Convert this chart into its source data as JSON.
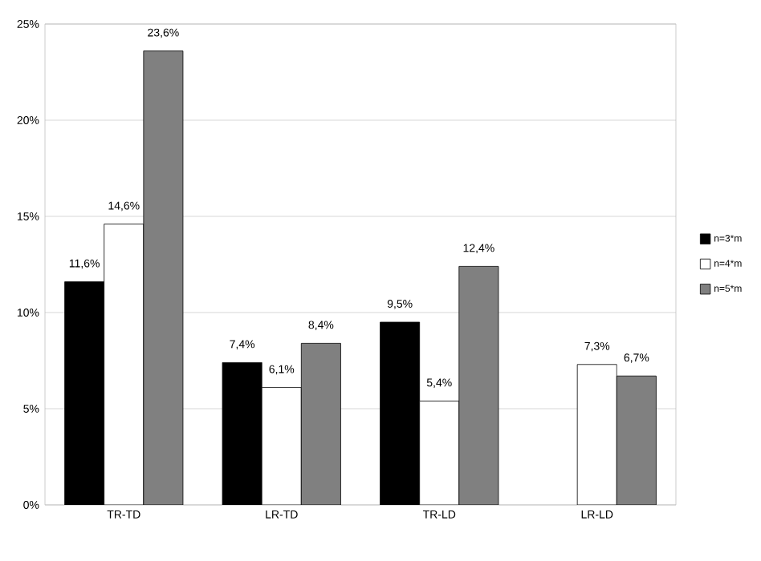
{
  "chart_data": {
    "type": "bar",
    "categories": [
      "TR-TD",
      "LR-TD",
      "TR-LD",
      "LR-LD"
    ],
    "series": [
      {
        "name": "n=3*m",
        "color": "#000000",
        "values": [
          11.6,
          7.4,
          9.5,
          null
        ],
        "value_labels": [
          "11,6%",
          "7,4%",
          "9,5%",
          null
        ]
      },
      {
        "name": "n=4*m",
        "color": "#ffffff",
        "values": [
          14.6,
          6.1,
          5.4,
          7.3
        ],
        "value_labels": [
          "14,6%",
          "6,1%",
          "5,4%",
          "7,3%"
        ]
      },
      {
        "name": "n=5*m",
        "color": "#808080",
        "values": [
          23.6,
          8.4,
          12.4,
          6.7
        ],
        "value_labels": [
          "23,6%",
          "8,4%",
          "12,4%",
          "6,7%"
        ]
      }
    ],
    "ylim": [
      0,
      25
    ],
    "yticks": [
      {
        "value": 0,
        "label": "0%"
      },
      {
        "value": 5,
        "label": "5%"
      },
      {
        "value": 10,
        "label": "10%"
      },
      {
        "value": 15,
        "label": "15%"
      },
      {
        "value": 20,
        "label": "20%"
      },
      {
        "value": 25,
        "label": "25%"
      }
    ],
    "grid": "y",
    "legend": "right"
  }
}
